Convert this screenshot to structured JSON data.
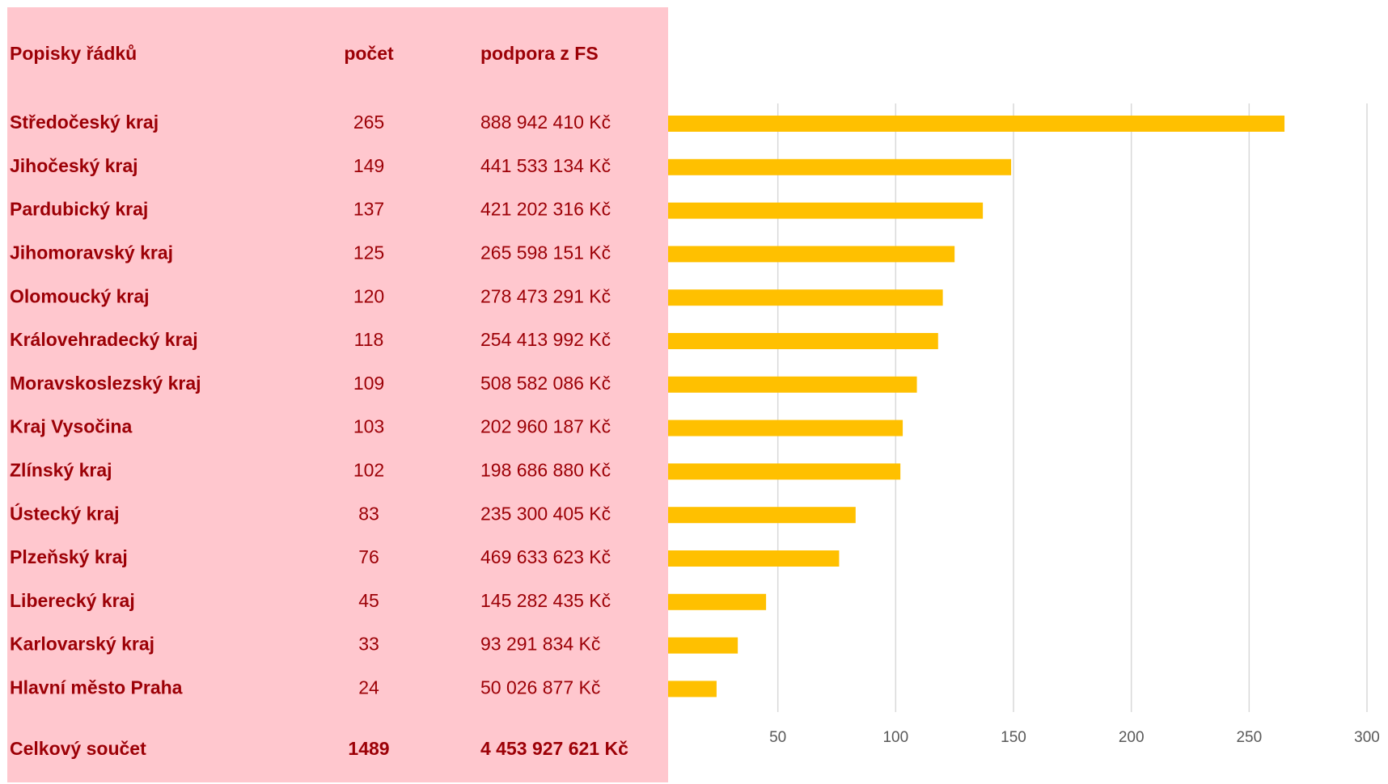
{
  "chart_data": {
    "type": "bar",
    "orientation": "horizontal",
    "columns": [
      "Popisky řádků",
      "počet",
      "podpora z FS"
    ],
    "categories": [
      "Středočeský kraj",
      "Jihočeský kraj",
      "Pardubický kraj",
      "Jihomoravský kraj",
      "Olomoucký kraj",
      "Královehradecký kraj",
      "Moravskoslezský kraj",
      "Kraj Vysočina",
      "Zlínský kraj",
      "Ústecký kraj",
      "Plzeňský kraj",
      "Liberecký kraj",
      "Karlovarský kraj",
      "Hlavní město Praha"
    ],
    "values": [
      265,
      149,
      137,
      125,
      120,
      118,
      109,
      103,
      102,
      83,
      76,
      45,
      33,
      24
    ],
    "amounts": [
      "888 942 410 Kč",
      "441 533 134 Kč",
      "421 202 316 Kč",
      "265 598 151 Kč",
      "278 473 291 Kč",
      "254 413 992 Kč",
      "508 582 086 Kč",
      "202 960 187 Kč",
      "198 686 880 Kč",
      "235 300 405 Kč",
      "469 633 623 Kč",
      "145 282 435 Kč",
      "93 291 834 Kč",
      "50 026 877 Kč"
    ],
    "total": {
      "label": "Celkový součet",
      "count": 1489,
      "amount": "4 453 927 621 Kč"
    },
    "color": "#ffc000",
    "xlim": [
      0,
      300
    ],
    "xticks": [
      50,
      100,
      150,
      200,
      250,
      300
    ],
    "grid": true
  }
}
